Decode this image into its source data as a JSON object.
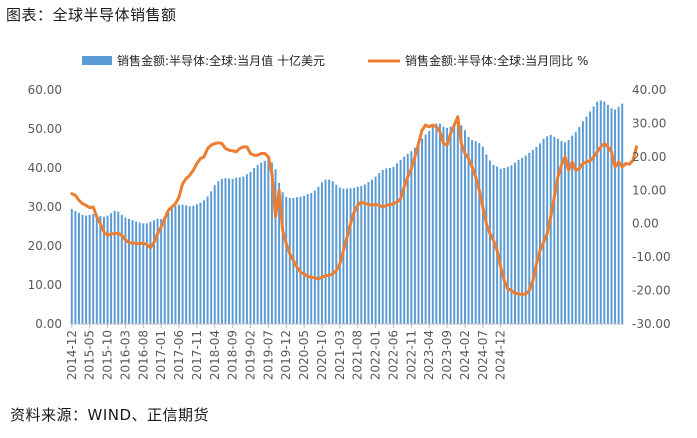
{
  "title": "图表：全球半导体销售额",
  "source": "资料来源：WIND、正信期货",
  "chart_data": {
    "type": "bar",
    "title": "图表：全球半导体销售额",
    "series": [
      {
        "name": "销售金额:半导体:全球:当月值 十亿美元",
        "type": "bar",
        "axis": "left",
        "color": "#5B9BD5",
        "values": [
          29.5,
          29.0,
          28.5,
          28.0,
          27.8,
          28.0,
          28.2,
          27.9,
          27.7,
          27.5,
          27.8,
          28.4,
          29.0,
          28.8,
          28.0,
          27.3,
          26.9,
          26.6,
          26.3,
          26.0,
          25.8,
          25.8,
          26.2,
          26.6,
          27.0,
          26.9,
          27.5,
          28.6,
          29.6,
          30.3,
          30.6,
          30.6,
          30.4,
          30.2,
          30.3,
          30.7,
          31.1,
          31.7,
          32.7,
          34.0,
          35.6,
          36.6,
          37.2,
          37.4,
          37.3,
          37.2,
          37.5,
          37.6,
          37.8,
          38.4,
          39.0,
          40.0,
          40.8,
          41.4,
          41.8,
          42.0,
          41.4,
          39.7,
          36.2,
          33.8,
          32.6,
          32.3,
          32.3,
          32.5,
          32.6,
          32.9,
          33.3,
          33.6,
          34.2,
          35.2,
          36.3,
          37.0,
          37.0,
          36.6,
          35.7,
          35.0,
          34.7,
          34.7,
          34.8,
          34.9,
          35.2,
          35.4,
          35.8,
          36.4,
          37.0,
          37.8,
          38.7,
          39.5,
          39.9,
          40.0,
          40.3,
          41.2,
          42.1,
          42.9,
          43.6,
          44.3,
          45.2,
          46.5,
          47.6,
          48.6,
          49.5,
          50.6,
          51.4,
          51.4,
          50.6,
          50.3,
          50.6,
          51.3,
          51.9,
          50.9,
          49.7,
          48.0,
          47.2,
          46.9,
          46.4,
          45.5,
          43.5,
          41.9,
          40.8,
          40.4,
          39.8,
          40.0,
          40.3,
          40.7,
          41.4,
          42.1,
          42.6,
          43.2,
          43.9,
          44.6,
          45.4,
          46.3,
          47.5,
          48.1,
          48.5,
          48.0,
          47.5,
          46.9,
          46.6,
          47.2,
          48.3,
          49.2,
          50.5,
          52.0,
          53.2,
          54.5,
          55.8,
          57.0,
          57.3,
          57.0,
          56.2,
          55.3,
          55.0,
          55.7,
          56.5
        ]
      },
      {
        "name": "销售金额:半导体:全球:当月同比 %",
        "type": "line",
        "axis": "right",
        "color": "#ED7D31",
        "values": [
          9.0,
          8.5,
          7.0,
          6.0,
          5.5,
          4.8,
          5.0,
          2.0,
          0.0,
          -2.5,
          -3.5,
          -3.0,
          -3.0,
          -2.8,
          -3.5,
          -4.8,
          -5.6,
          -5.8,
          -5.9,
          -6.0,
          -5.8,
          -6.2,
          -7.2,
          -5.6,
          -3.0,
          -1.0,
          1.5,
          4.0,
          5.0,
          6.0,
          8.0,
          12.0,
          13.5,
          14.5,
          16.0,
          18.0,
          19.5,
          20.0,
          22.5,
          23.5,
          24.0,
          24.2,
          24.0,
          22.5,
          22.0,
          21.8,
          21.5,
          22.5,
          23.0,
          23.0,
          21.0,
          20.5,
          20.5,
          21.0,
          21.0,
          20.0,
          15.0,
          2.0,
          10.0,
          -2.0,
          -6.0,
          -9.0,
          -11.0,
          -13.0,
          -14.5,
          -15.0,
          -15.8,
          -16.0,
          -16.2,
          -16.5,
          -16.0,
          -15.5,
          -15.5,
          -15.0,
          -14.0,
          -12.0,
          -8.0,
          -4.0,
          0.0,
          3.5,
          5.5,
          6.5,
          6.0,
          5.8,
          5.5,
          5.8,
          5.5,
          5.0,
          5.5,
          5.7,
          6.0,
          6.5,
          7.5,
          11.0,
          14.0,
          16.5,
          20.0,
          24.0,
          28.0,
          29.5,
          29.0,
          29.5,
          29.0,
          27.5,
          24.0,
          23.5,
          27.0,
          29.5,
          32.0,
          24.0,
          21.0,
          19.5,
          17.0,
          14.0,
          10.0,
          5.0,
          0.0,
          -3.0,
          -5.0,
          -8.0,
          -13.0,
          -17.0,
          -19.5,
          -20.0,
          -20.8,
          -21.0,
          -21.2,
          -21.0,
          -20.0,
          -17.0,
          -12.0,
          -8.0,
          -5.5,
          -3.0,
          2.0,
          8.0,
          14.0,
          17.5,
          20.0,
          16.0,
          18.5,
          16.0,
          16.5,
          18.0,
          18.5,
          18.8,
          20.0,
          21.5,
          23.0,
          24.0,
          23.0,
          21.5,
          17.0,
          18.5,
          17.0,
          18.0,
          17.8,
          19.0,
          23.0
        ]
      }
    ],
    "x_tick_labels": [
      "2014-12",
      "2015-05",
      "2015-10",
      "2016-03",
      "2016-08",
      "2017-01",
      "2017-06",
      "2017-11",
      "2018-04",
      "2018-09",
      "2019-02",
      "2019-07",
      "2019-12",
      "2020-05",
      "2020-10",
      "2021-03",
      "2021-08",
      "2022-01",
      "2022-06",
      "2022-11",
      "2023-04",
      "2023-09",
      "2024-02",
      "2024-07",
      "2024-12"
    ],
    "x_start": "2014-12",
    "x_end": "2025-02",
    "y_left_ticks": [
      "0.00",
      "10.00",
      "20.00",
      "30.00",
      "40.00",
      "50.00",
      "60.00"
    ],
    "y_right_ticks": [
      "-30.00",
      "-20.00",
      "-10.00",
      "0.00",
      "10.00",
      "20.00",
      "30.00",
      "40.00"
    ],
    "ylim_left": [
      0,
      60
    ],
    "ylim_right": [
      -30,
      40
    ],
    "legend_position": "top",
    "grid": false
  }
}
